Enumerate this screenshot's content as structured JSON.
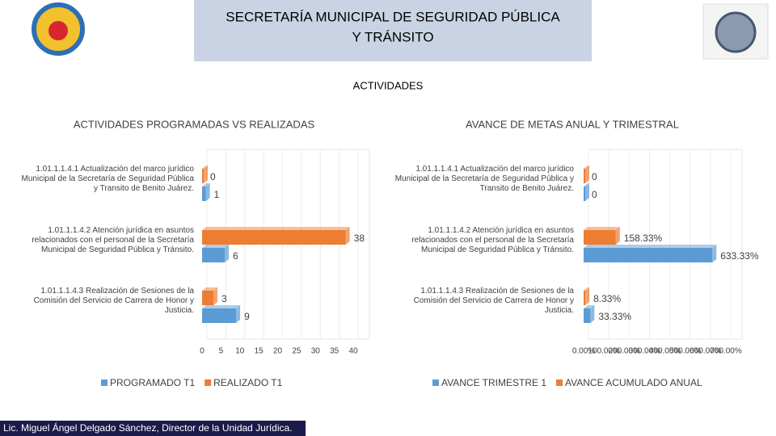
{
  "header": {
    "title_lines": [
      "SECRETARÍA MUNICIPAL DE SEGURIDAD PÚBLICA",
      "Y TRÁNSITO"
    ],
    "subtitle": "ACTIVIDADES"
  },
  "footer": "Lic. Miguel Ángel Delgado Sánchez, Director de la Unidad Jurídica.",
  "chart_data": [
    {
      "type": "bar",
      "orientation": "horizontal",
      "title": "ACTIVIDADES PROGRAMADAS VS REALIZADAS",
      "categories": [
        "1.01.1.1.4.1 Actualización del marco jurídico Municipal de la Secretaría de Seguridad Pública y Transito de Benito Juárez.",
        "1.01.1.1.4.2 Atención jurídica en asuntos relacionados con el personal de la Secretaría Municipal de Seguridad Pública y Tránsito.",
        "1.01.1.1.4.3 Realización de Sesiones de la Comisión del Servicio de Carrera de Honor y Justicia."
      ],
      "series": [
        {
          "name": "PROGRAMADO T1",
          "color": "#5b9bd5",
          "values": [
            1,
            6,
            9
          ]
        },
        {
          "name": "REALIZADO T1",
          "color": "#ed7d31",
          "values": [
            0,
            38,
            3
          ]
        }
      ],
      "xlim": [
        0,
        40
      ],
      "xticks": [
        0,
        5,
        10,
        15,
        20,
        25,
        30,
        35,
        40
      ],
      "grid": true,
      "legend": "bottom"
    },
    {
      "type": "bar",
      "orientation": "horizontal",
      "title": "AVANCE DE METAS ANUAL Y TRIMESTRAL",
      "categories": [
        "1.01.1.1.4.1 Actualización del marco jurídico Municipal de la Secretaría de Seguridad Pública y Transito de Benito Juárez.",
        "1.01.1.1.4.2 Atención jurídica en asuntos relacionados con el personal de la Secretaría Municipal de Seguridad Pública y Tránsito.",
        "1.01.1.1.4.3 Realización de Sesiones de la Comisión del Servicio de Carrera de Honor y Justicia."
      ],
      "series": [
        {
          "name": "AVANCE TRIMESTRE 1",
          "color": "#5b9bd5",
          "values": [
            0,
            633.33,
            33.33
          ],
          "value_labels": [
            "0",
            "633.33%",
            "33.33%"
          ]
        },
        {
          "name": "AVANCE ACUMULADO ANUAL",
          "color": "#ed7d31",
          "values": [
            0,
            158.33,
            8.33
          ],
          "value_labels": [
            "0",
            "158.33%",
            "8.33%"
          ]
        }
      ],
      "xlim": [
        0,
        700
      ],
      "xticks": [
        {
          "value": 0,
          "label": "0.00%"
        },
        {
          "value": 100,
          "label": "100.00%"
        },
        {
          "value": 200,
          "label": "200.00%"
        },
        {
          "value": 300,
          "label": "300.00%"
        },
        {
          "value": 400,
          "label": "400.00%"
        },
        {
          "value": 500,
          "label": "500.00%"
        },
        {
          "value": 600,
          "label": "600.00%"
        },
        {
          "value": 700,
          "label": "700.00%"
        }
      ],
      "grid": true,
      "legend": "bottom"
    }
  ]
}
